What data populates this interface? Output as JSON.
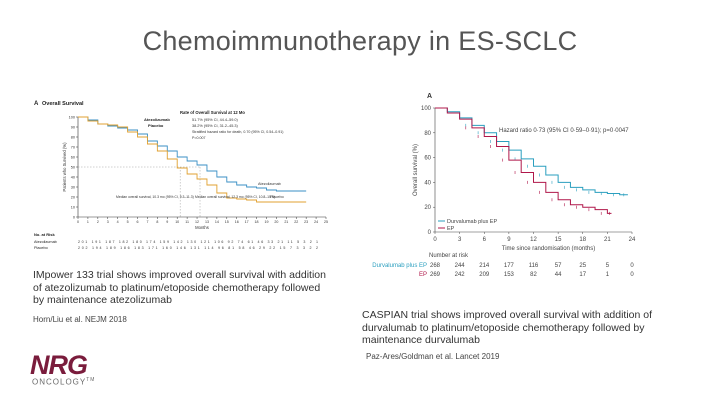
{
  "slide": {
    "title": "Chemoimmunotherapy in ES-SCLC",
    "left_caption": "IMpower 133 trial shows improved overall survival with addition of atezolizumab to platinum/etoposide chemotherapy followed by maintenance atezolizumab",
    "left_citation": "Horn/Liu et al. NEJM 2018",
    "right_caption": "CASPIAN trial shows improved overall survival with addition of durvalumab to platinum/etoposide chemotherapy followed by maintenance durvalumab",
    "right_citation": "Paz-Ares/Goldman et al. Lancet 2019",
    "logo_text": "NRG",
    "logo_sub": "ONCOLOGY",
    "logo_tm": "TM"
  },
  "colors": {
    "title": "#555555",
    "blue_series": "#3a8fc4",
    "orange_series": "#e0a030",
    "teal_series": "#2a9fbf",
    "crimson_series": "#b0174a",
    "logo": "#7a1c3c"
  },
  "chart_data": [
    {
      "type": "line",
      "panel": "A",
      "title": "Overall Survival",
      "xlabel": "Months",
      "ylabel": "Patients who Survived (%)",
      "xlim": [
        0,
        25
      ],
      "ylim": [
        0,
        100
      ],
      "x_ticks": [
        "0",
        "1",
        "2",
        "3",
        "4",
        "5",
        "6",
        "7",
        "8",
        "9",
        "10",
        "11",
        "12",
        "13",
        "14",
        "15",
        "16",
        "17",
        "18",
        "19",
        "20",
        "21",
        "22",
        "23",
        "24",
        "25"
      ],
      "y_ticks": [
        "0",
        "10",
        "20",
        "30",
        "40",
        "50",
        "60",
        "70",
        "80",
        "90",
        "100"
      ],
      "annotations": {
        "rate_heading": "Rate of Overall Survival at 12 Mo",
        "atezo_label": "Atezolizumab",
        "placebo_label": "Placebo",
        "atezo_rate": "51.7% (95% CI, 44.4–59.0)",
        "placebo_rate": "38.2% (95% CI, 31.2–45.3)",
        "hr_text": "Stratified hazard ratio for death, 0.70 (95% CI, 0.54–0.91)",
        "p_text": "P=0.007",
        "median_atezo": "Median overall survival, 12.3 mo (95% CI, 10.8–15.9)",
        "median_placebo": "Median overall survival, 10.3 mo (95% CI, 9.3–11.3)",
        "curve_label_atezo": "Atezolizumab",
        "curve_label_placebo": "Placebo"
      },
      "risk_table": {
        "heading": "No. at Risk",
        "rows": [
          {
            "name": "Atezolizumab",
            "values": "201 191 187 182 180 174 159 142 130 121 106 92 74 61 46 33 21 11 5 3 2 1"
          },
          {
            "name": "Placebo",
            "values": "202 194 189 186 183 171 160 146 131 114 96 81 58 46 29 22 15 7 3 3 2 2"
          }
        ]
      },
      "series": [
        {
          "name": "Atezolizumab",
          "x": [
            0,
            1,
            2,
            3,
            4,
            5,
            6,
            7,
            8,
            9,
            10,
            11,
            12,
            13,
            14,
            15,
            16,
            17,
            18,
            19,
            20,
            21,
            22,
            23
          ],
          "y": [
            100,
            97,
            93,
            91,
            89,
            87,
            83,
            76,
            71,
            66,
            60,
            56,
            52,
            46,
            40,
            35,
            32,
            30,
            29,
            27,
            26,
            26,
            26,
            26
          ]
        },
        {
          "name": "Placebo",
          "x": [
            0,
            1,
            2,
            3,
            4,
            5,
            6,
            7,
            8,
            9,
            10,
            11,
            12,
            13,
            14,
            15,
            16,
            17,
            18,
            19,
            20,
            21,
            22,
            23
          ],
          "y": [
            100,
            96,
            93,
            92,
            90,
            85,
            80,
            73,
            66,
            58,
            49,
            43,
            38,
            32,
            24,
            19,
            18,
            17,
            15,
            15,
            15,
            15,
            15,
            15
          ]
        }
      ]
    },
    {
      "type": "line",
      "panel": "A",
      "xlabel": "Time since randomisation (months)",
      "ylabel": "Overall survival (%)",
      "xlim": [
        0,
        24
      ],
      "ylim": [
        0,
        100
      ],
      "x_ticks": [
        "0",
        "3",
        "6",
        "9",
        "12",
        "15",
        "18",
        "21",
        "24"
      ],
      "y_ticks": [
        "0",
        "20",
        "40",
        "60",
        "80",
        "100"
      ],
      "annotations": {
        "hr_text": "Hazard ratio 0·73 (95% CI 0·59–0·91); p=0·0047"
      },
      "legend": [
        "Durvalumab plus EP",
        "EP"
      ],
      "risk_table": {
        "heading": "Number at risk",
        "rows": [
          {
            "name": "Durvalumab plus EP",
            "values": [
              "268",
              "244",
              "214",
              "177",
              "116",
              "57",
              "25",
              "5",
              "0"
            ]
          },
          {
            "name": "EP",
            "values": [
              "269",
              "242",
              "209",
              "153",
              "82",
              "44",
              "17",
              "1",
              "0"
            ]
          }
        ]
      },
      "series": [
        {
          "name": "Durvalumab plus EP",
          "x": [
            0,
            1.5,
            3,
            4.5,
            6,
            7.5,
            9,
            10.5,
            12,
            13.5,
            15,
            16.5,
            18,
            19.5,
            21,
            22.5,
            23.5
          ],
          "y": [
            100,
            97,
            92,
            86,
            80,
            73,
            66,
            59,
            53,
            46,
            40,
            36,
            34,
            32,
            31,
            30,
            30
          ]
        },
        {
          "name": "EP",
          "x": [
            0,
            1.5,
            3,
            4.5,
            6,
            7.5,
            9,
            10.5,
            12,
            13.5,
            15,
            16.5,
            18,
            19.5,
            21,
            21.5
          ],
          "y": [
            100,
            96,
            91,
            84,
            77,
            69,
            58,
            48,
            40,
            32,
            26,
            22,
            20,
            18,
            15,
            15
          ]
        }
      ]
    }
  ]
}
